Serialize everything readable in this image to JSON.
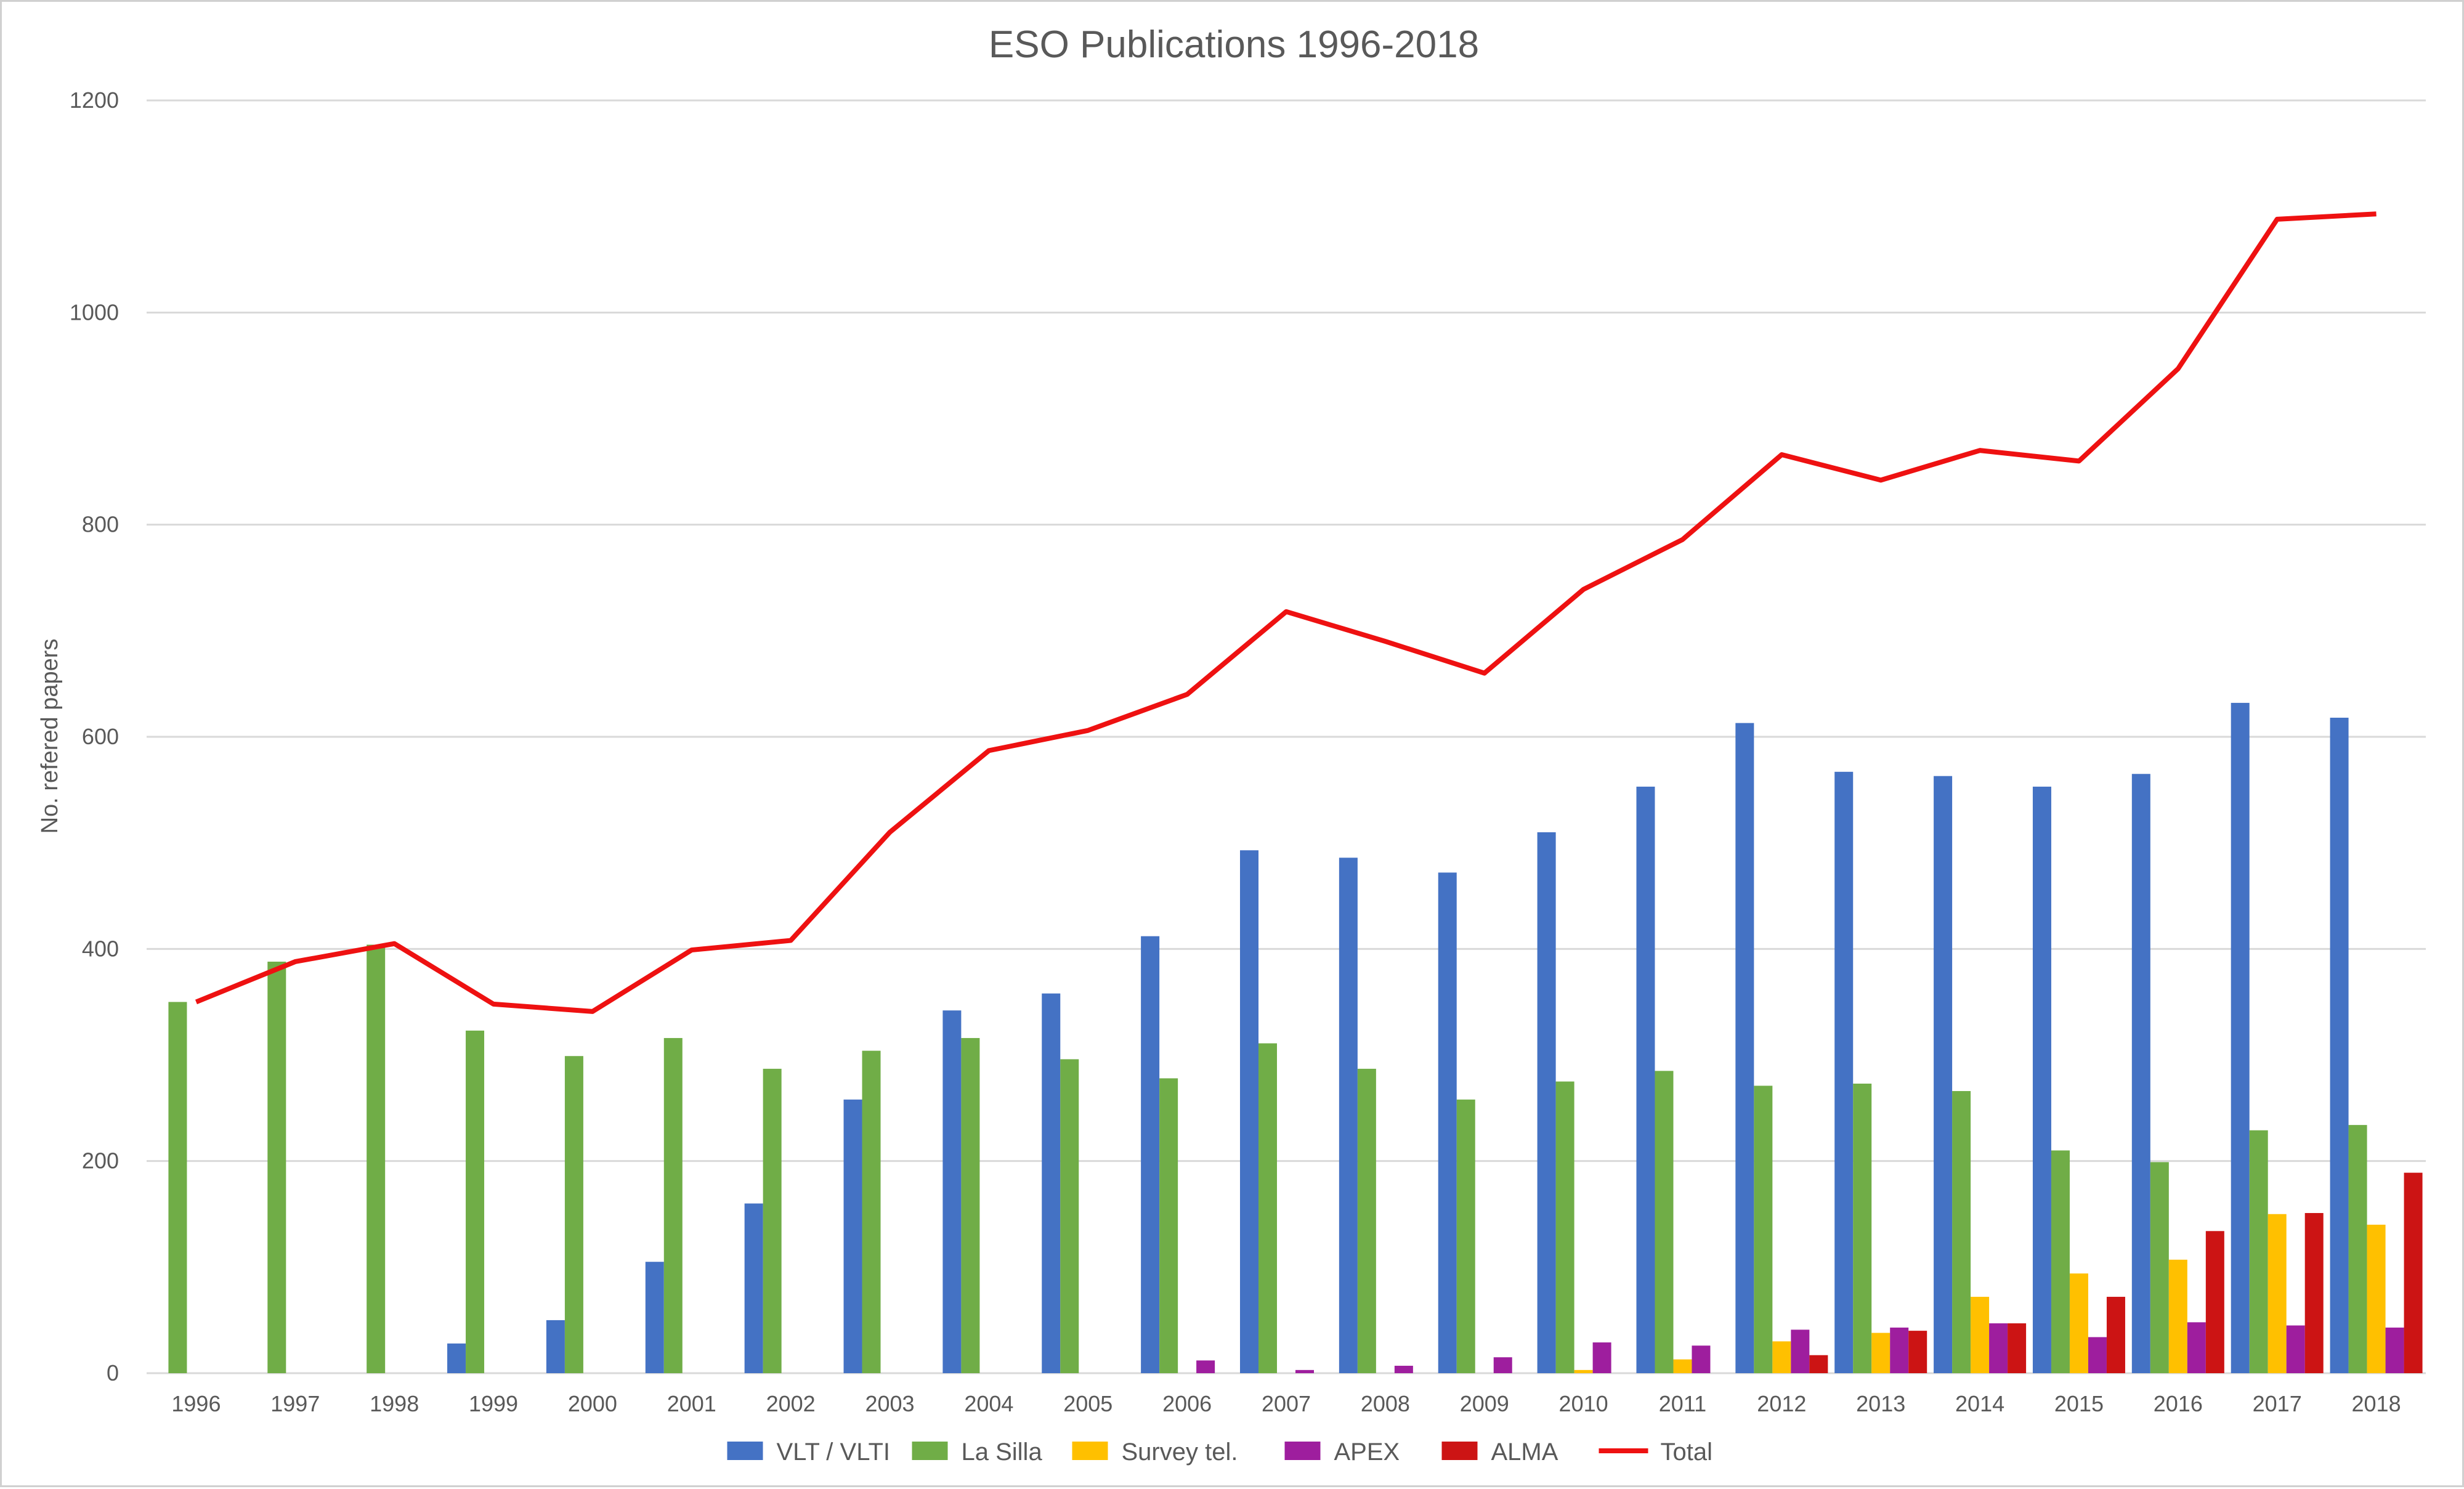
{
  "chart_data": {
    "type": "bar",
    "title": "ESO Publications 1996-2018",
    "xlabel": "",
    "ylabel": "No. refered papers",
    "ylim": [
      0,
      1200
    ],
    "yticks": [
      0,
      200,
      400,
      600,
      800,
      1000,
      1200
    ],
    "grid": true,
    "legend_position": "bottom",
    "categories": [
      "1996",
      "1997",
      "1998",
      "1999",
      "2000",
      "2001",
      "2002",
      "2003",
      "2004",
      "2005",
      "2006",
      "2007",
      "2008",
      "2009",
      "2010",
      "2011",
      "2012",
      "2013",
      "2014",
      "2015",
      "2016",
      "2017",
      "2018"
    ],
    "series": [
      {
        "name": "VLT / VLTI",
        "type": "bar",
        "color": "#4472c4",
        "values": [
          0,
          0,
          0,
          28,
          50,
          105,
          160,
          258,
          342,
          358,
          412,
          493,
          486,
          472,
          510,
          553,
          613,
          567,
          563,
          553,
          565,
          632,
          618
        ]
      },
      {
        "name": "La Silla",
        "type": "bar",
        "color": "#70ad47",
        "values": [
          350,
          388,
          404,
          323,
          299,
          316,
          287,
          304,
          316,
          296,
          278,
          311,
          287,
          258,
          275,
          285,
          271,
          273,
          266,
          210,
          199,
          229,
          234
        ]
      },
      {
        "name": "Survey tel.",
        "type": "bar",
        "color": "#ffc000",
        "values": [
          0,
          0,
          0,
          0,
          0,
          0,
          0,
          0,
          0,
          0,
          0,
          0,
          0,
          0,
          3,
          13,
          30,
          38,
          72,
          94,
          107,
          150,
          140
        ]
      },
      {
        "name": "APEX",
        "type": "bar",
        "color": "#9e1e9e",
        "values": [
          0,
          0,
          0,
          0,
          0,
          0,
          0,
          0,
          0,
          0,
          12,
          3,
          7,
          15,
          29,
          26,
          41,
          43,
          47,
          34,
          48,
          45,
          43
        ]
      },
      {
        "name": "ALMA",
        "type": "bar",
        "color": "#cc1414",
        "values": [
          0,
          0,
          0,
          0,
          0,
          0,
          0,
          0,
          0,
          0,
          0,
          0,
          0,
          0,
          0,
          0,
          17,
          40,
          47,
          72,
          134,
          151,
          189
        ]
      },
      {
        "name": "Total",
        "type": "line",
        "color": "#ee1111",
        "values": [
          350,
          388,
          405,
          348,
          341,
          399,
          408,
          510,
          587,
          606,
          640,
          718,
          690,
          660,
          739,
          786,
          866,
          842,
          870,
          860,
          947,
          1088,
          1093
        ]
      }
    ]
  }
}
